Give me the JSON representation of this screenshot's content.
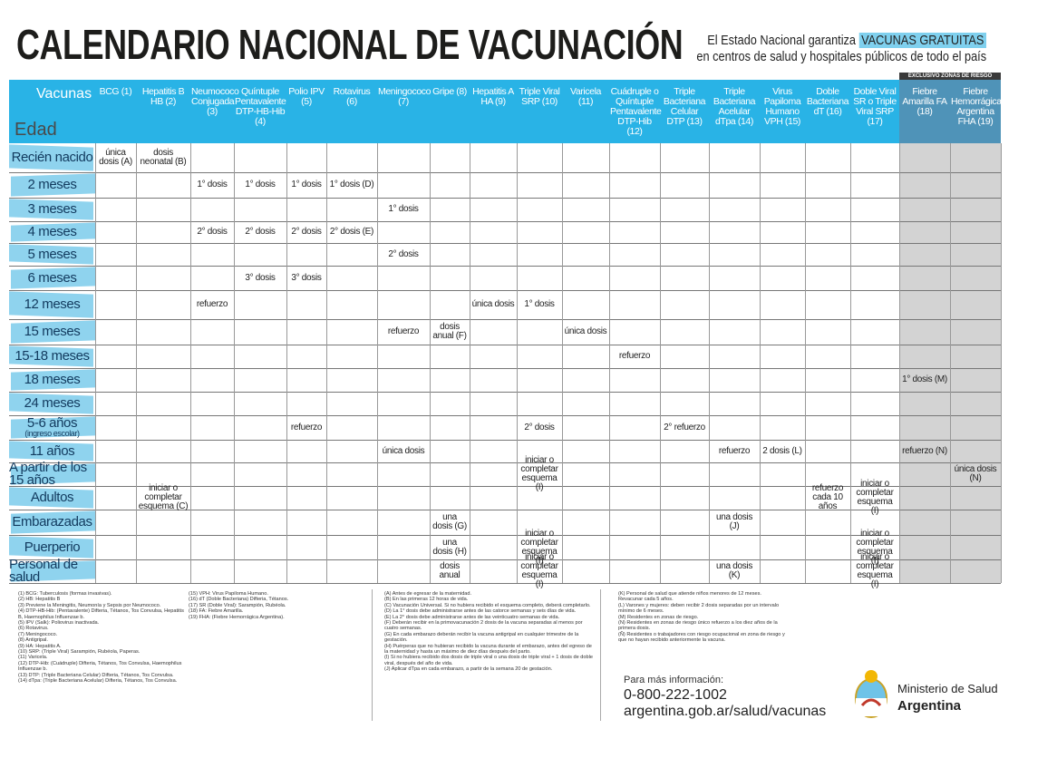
{
  "header": {
    "title": "CALENDARIO NACIONAL DE VACUNACIÓN",
    "tagline_prefix": "El Estado Nacional garantiza",
    "tagline_highlight": "VACUNAS GRATUITAS",
    "tagline_line2": "en centros de salud y hospitales públicos de todo el país",
    "risk_zone_label": "EXCLUSIVO ZONAS DE RIESGO"
  },
  "table": {
    "corner_vaccines": "Vacunas",
    "corner_age": "Edad",
    "columns": [
      "BCG (1)",
      "Hepatitis B HB (2)",
      "Neumococo Conjugada (3)",
      "Quíntuple Pentavalente DTP-HB-Hib (4)",
      "Polio IPV (5)",
      "Rotavirus (6)",
      "Meningococo (7)",
      "Gripe (8)",
      "Hepatitis A HA (9)",
      "Triple Viral SRP (10)",
      "Varicela (11)",
      "Cuádruple o Quíntuple Pentavalente DTP-Hib (12)",
      "Triple Bacteriana Celular DTP (13)",
      "Triple Bacteriana Acelular dTpa (14)",
      "Virus Papiloma Humano VPH (15)",
      "Doble Bacteriana dT (16)",
      "Doble Viral SR o Triple Viral SRP (17)",
      "Fiebre Amarilla FA (18)",
      "Fiebre Hemorrágica Argentina FHA (19)"
    ],
    "rows": [
      {
        "age": "Recién nacido",
        "cells": [
          "única dosis (A)",
          "dosis neonatal (B)",
          null,
          null,
          null,
          null,
          null,
          null,
          null,
          null,
          null,
          null,
          null,
          null,
          null,
          null,
          null,
          null,
          null
        ]
      },
      {
        "age": "2 meses",
        "cells": [
          null,
          null,
          "1° dosis",
          "1° dosis",
          "1° dosis",
          "1° dosis (D)",
          null,
          null,
          null,
          null,
          null,
          null,
          null,
          null,
          null,
          null,
          null,
          null,
          null
        ]
      },
      {
        "age": "3 meses",
        "cells": [
          null,
          null,
          null,
          null,
          null,
          null,
          "1° dosis",
          null,
          null,
          null,
          null,
          null,
          null,
          null,
          null,
          null,
          null,
          null,
          null
        ]
      },
      {
        "age": "4 meses",
        "cells": [
          null,
          null,
          "2° dosis",
          "2° dosis",
          "2° dosis",
          "2° dosis (E)",
          null,
          null,
          null,
          null,
          null,
          null,
          null,
          null,
          null,
          null,
          null,
          null,
          null
        ]
      },
      {
        "age": "5 meses",
        "cells": [
          null,
          null,
          null,
          null,
          null,
          null,
          "2° dosis",
          null,
          null,
          null,
          null,
          null,
          null,
          null,
          null,
          null,
          null,
          null,
          null
        ]
      },
      {
        "age": "6 meses",
        "cells": [
          null,
          null,
          null,
          "3° dosis",
          "3° dosis",
          null,
          null,
          null,
          null,
          null,
          null,
          null,
          null,
          null,
          null,
          null,
          null,
          null,
          null
        ]
      },
      {
        "age": "12 meses",
        "cells": [
          null,
          null,
          "refuerzo",
          null,
          null,
          null,
          null,
          null,
          "única dosis",
          "1° dosis",
          null,
          null,
          null,
          null,
          null,
          null,
          null,
          null,
          null
        ]
      },
      {
        "age": "15 meses",
        "cells": [
          null,
          null,
          null,
          null,
          null,
          null,
          "refuerzo",
          "dosis anual (F)",
          null,
          null,
          "única dosis",
          null,
          null,
          null,
          null,
          null,
          null,
          null,
          null
        ]
      },
      {
        "age": "15-18 meses",
        "cells": [
          null,
          null,
          null,
          null,
          null,
          null,
          null,
          null,
          null,
          null,
          null,
          "refuerzo",
          null,
          null,
          null,
          null,
          null,
          null,
          null
        ]
      },
      {
        "age": "18 meses",
        "cells": [
          null,
          null,
          null,
          null,
          null,
          null,
          null,
          null,
          null,
          null,
          null,
          null,
          null,
          null,
          null,
          null,
          null,
          "1° dosis (M)",
          null
        ]
      },
      {
        "age": "24 meses",
        "cells": [
          null,
          null,
          null,
          null,
          null,
          null,
          null,
          null,
          null,
          null,
          null,
          null,
          null,
          null,
          null,
          null,
          null,
          null,
          null
        ]
      },
      {
        "age": "5-6 años",
        "note": "(ingreso escolar)",
        "cells": [
          null,
          null,
          null,
          null,
          "refuerzo",
          null,
          null,
          null,
          null,
          "2° dosis",
          null,
          null,
          "2° refuerzo",
          null,
          null,
          null,
          null,
          null,
          null
        ]
      },
      {
        "age": "11 años",
        "cells": [
          null,
          null,
          null,
          null,
          null,
          null,
          "única dosis",
          null,
          null,
          null,
          null,
          null,
          null,
          "refuerzo",
          "2 dosis (L)",
          null,
          null,
          "refuerzo (N)",
          null
        ]
      },
      {
        "age": "A partir de los 15 años",
        "cells": [
          null,
          null,
          null,
          null,
          null,
          null,
          null,
          null,
          null,
          "iniciar o completar esquema (I)",
          null,
          null,
          null,
          null,
          null,
          null,
          null,
          null,
          "única dosis (N)"
        ]
      },
      {
        "age": "Adultos",
        "cells": [
          null,
          "iniciar o completar esquema (C)",
          null,
          null,
          null,
          null,
          null,
          null,
          null,
          null,
          null,
          null,
          null,
          null,
          null,
          "refuerzo cada 10 años",
          "iniciar o completar esquema (I)",
          null,
          null
        ]
      },
      {
        "age": "Embarazadas",
        "cells": [
          null,
          null,
          null,
          null,
          null,
          null,
          null,
          "una dosis (G)",
          null,
          null,
          null,
          null,
          null,
          "una dosis (J)",
          null,
          null,
          null,
          null,
          null
        ]
      },
      {
        "age": "Puerperio",
        "cells": [
          null,
          null,
          null,
          null,
          null,
          null,
          null,
          "una dosis (H)",
          null,
          "iniciar o completar esquema (I)",
          null,
          null,
          null,
          null,
          null,
          null,
          "iniciar o completar esquema (I)",
          null,
          null
        ]
      },
      {
        "age": "Personal de salud",
        "cells": [
          null,
          null,
          null,
          null,
          null,
          null,
          null,
          "dosis anual",
          null,
          "iniciar o completar esquema (I)",
          null,
          null,
          null,
          "una dosis (K)",
          null,
          null,
          "iniciar o completar esquema (I)",
          null,
          null
        ]
      }
    ]
  },
  "footnotes": [
    [
      "(1) BCG: Tuberculosis (formas invasivas).",
      "(2) HB: Hepatitis B",
      "(3) Previene la Meningitis, Neumonía y Sepsis por Neumococo.",
      "(4) DTP-HB-Hib: (Pentavalente) Difteria, Tétanos, Tos Convulsa, Hepatitis B, Haemophilus Influenzae b.",
      "(5) IPV (Salk): Poliovirus inactivada.",
      "(6) Rotavirus.",
      "(7) Meningococo.",
      "(8) Antigripal.",
      "(9) HA: Hepatitis A.",
      "(10) SRP: (Triple Viral) Sarampión, Rubéola, Paperas.",
      "(11) Varicela.",
      "(12) DTP-Hib: (Cuádruple) Difteria, Tétanos, Tos Convulsa, Haemophilus Influenzae b.",
      "(13) DTP: (Triple Bacteriana Celular) Difteria, Tétanos, Tos Convulsa.",
      "(14) dTpa: (Triple Bacteriana Acelular) Difteria, Tétanos, Tos Convulsa."
    ],
    [
      "(15) VPH: Virus Papiloma Humano.",
      "(16) dT (Doble Bacteriana) Difteria, Tétanos.",
      "(17) SR (Doble Viral): Sarampión, Rubéola.",
      "(18) FA: Fiebre Amarilla.",
      "(19) FHA: (Fiebre Hemorrágica Argentina)."
    ],
    [
      "(A) Antes de egresar de la maternidad.",
      "(B) En las primeras 12 horas de vida.",
      "(C) Vacunación Universal. Si no hubiera recibido el esquema completo, deberá completarlo.",
      "(D) La 1° dosis debe administrarse antes de las catorce semanas y seis días de vida.",
      "(E) La 2° dosis debe administrarse antes de las veinticuatro semanas de vida.",
      "(F) Deberán recibir en la primovacunación 2 dosis de la vacuna separadas al menos por cuatro semanas.",
      "(G) En cada embarazo deberán recibir la vacuna antigripal en cualquier trimestre de la gestación.",
      "(H) Puérperas que no hubieran recibido la vacuna durante el embarazo, antes del egreso de la maternidad y hasta un máximo de diez días después del parto.",
      "(I) Si no hubiera recibido dos dosis de triple viral o una dosis de triple viral + 1 dosis de doble viral, después del año de vida.",
      "(J) Aplicar dTpa en cada embarazo, a partir de la semana 20 de gestación."
    ],
    [
      "(K) Personal de salud que atiende niños menores de 12 meses. Revacunar cada 5 años.",
      "(L) Varones y mujeres: deben recibir 2 dosis separadas por un intervalo mínimo de 6 meses.",
      "(M) Residentes en zonas de riesgo.",
      "(N) Residentes en zonas de riesgo único refuerzo a los diez años de la primera dosis.",
      "(Ñ) Residentes o trabajadores con riesgo ocupacional en zona de riesgo y que no hayan recibido anteriormente la vacuna."
    ]
  ],
  "contact": {
    "label": "Para más información:",
    "phone": "0-800-222-1002",
    "url": "argentina.gob.ar/salud/vacunas"
  },
  "ministry": {
    "line1": "Ministerio de Salud",
    "line2": "Argentina"
  }
}
